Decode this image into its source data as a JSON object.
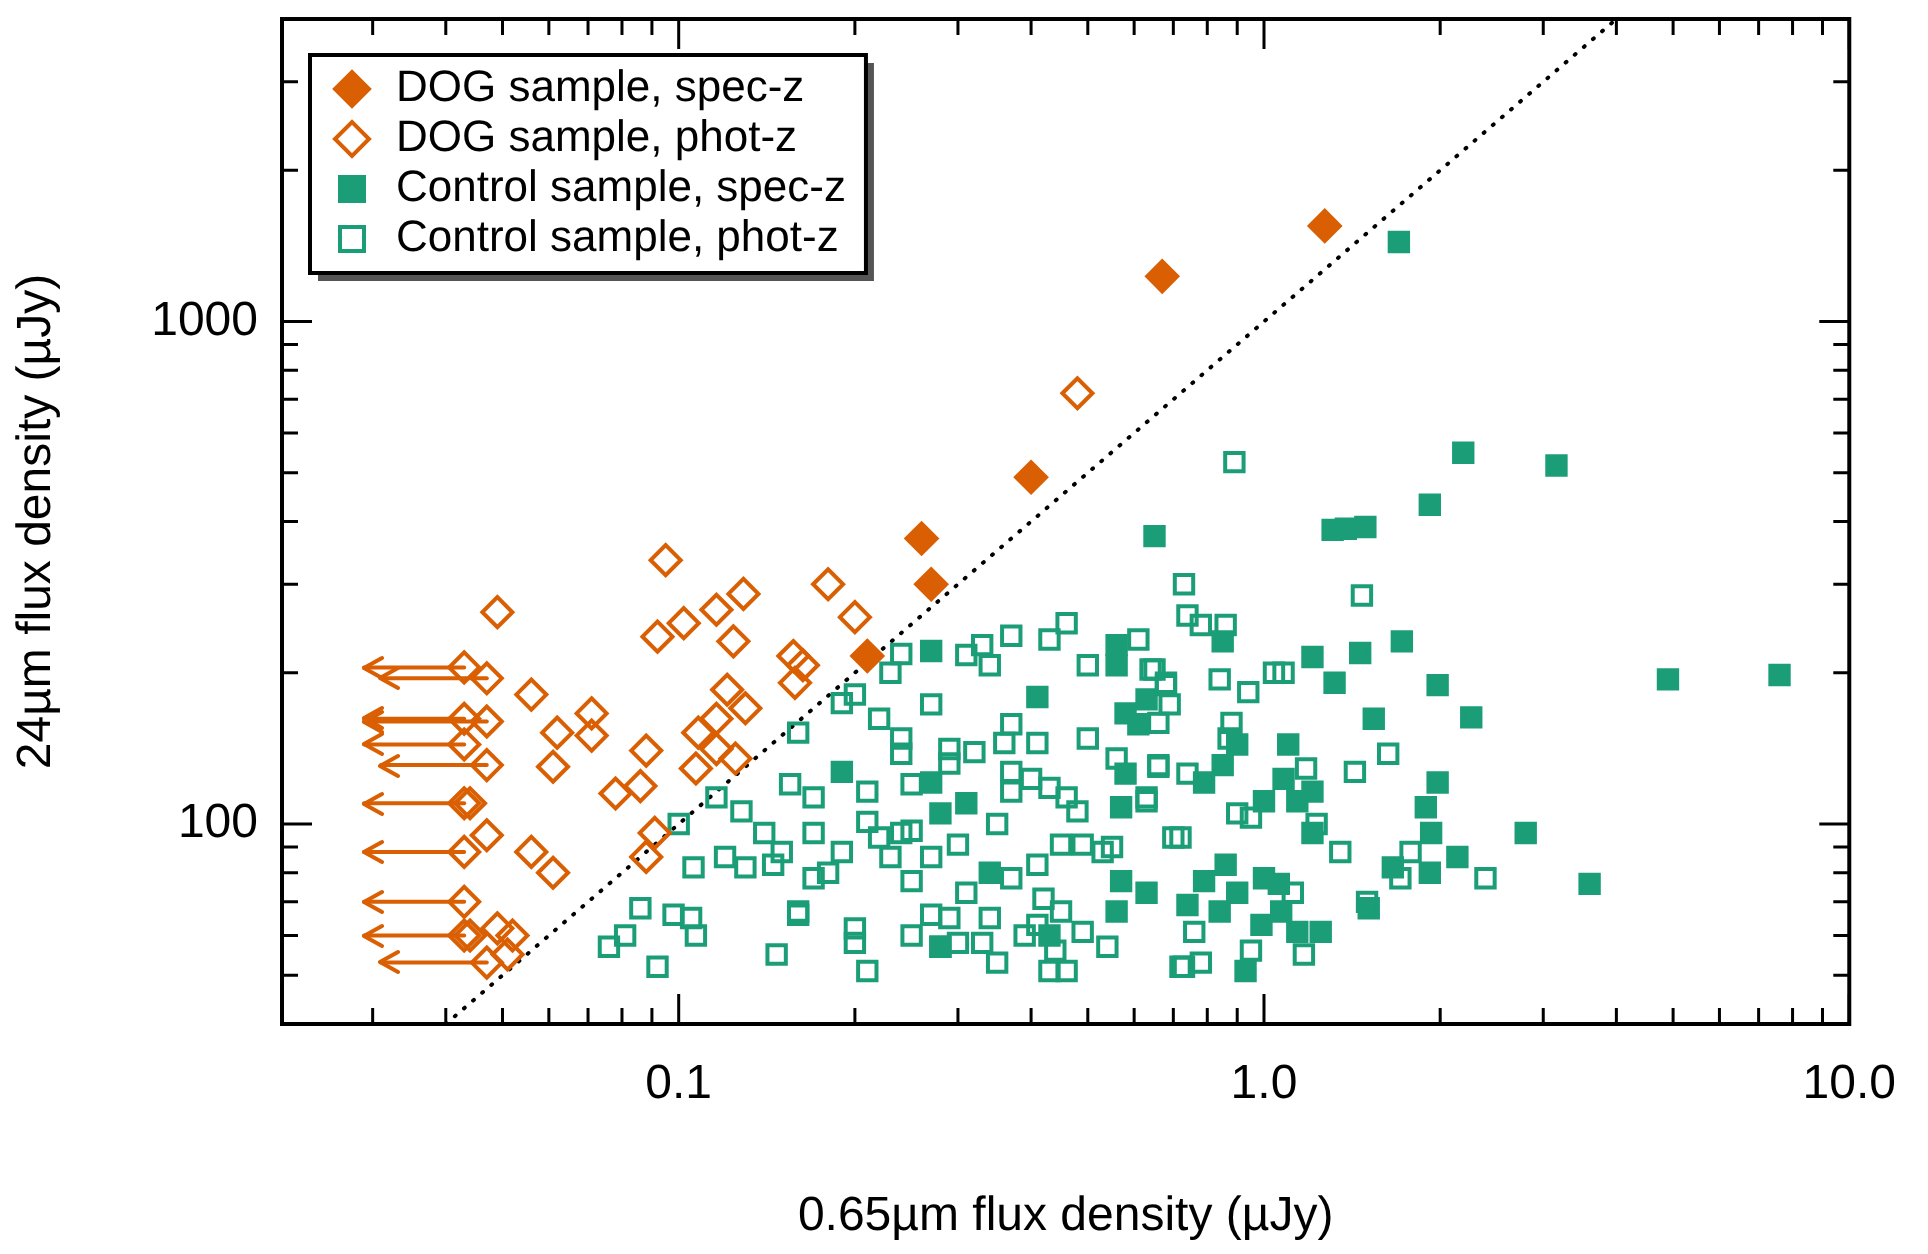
{
  "chart_data": {
    "type": "scatter",
    "xlabel": "0.65µm flux density (µJy)",
    "ylabel": "24µm flux density (µJy)",
    "log": "xy",
    "grid": false,
    "legend": "top left",
    "xlim": [
      0.021,
      10
    ],
    "ylim": [
      40,
      4000
    ],
    "xticks": [
      {
        "value": 0.03,
        "label": null
      },
      {
        "value": 0.04,
        "label": null
      },
      {
        "value": 0.05,
        "label": null
      },
      {
        "value": 0.06,
        "label": null
      },
      {
        "value": 0.07,
        "label": null
      },
      {
        "value": 0.08,
        "label": null
      },
      {
        "value": 0.09,
        "label": null
      },
      0.1,
      {
        "value": 0.2,
        "label": null
      },
      {
        "value": 0.3,
        "label": null
      },
      {
        "value": 0.4,
        "label": null
      },
      {
        "value": 0.5,
        "label": null
      },
      {
        "value": 0.6,
        "label": null
      },
      {
        "value": 0.7,
        "label": null
      },
      {
        "value": 0.8,
        "label": null
      },
      {
        "value": 0.9,
        "label": null
      },
      {
        "value": 1,
        "label": "1.0"
      },
      {
        "value": 2,
        "label": null
      },
      {
        "value": 3,
        "label": null
      },
      {
        "value": 4,
        "label": null
      },
      {
        "value": 5,
        "label": null
      },
      {
        "value": 6,
        "label": null
      },
      {
        "value": 7,
        "label": null
      },
      {
        "value": 8,
        "label": null
      },
      {
        "value": 9,
        "label": null
      },
      {
        "value": 10,
        "label": "10.0"
      }
    ],
    "yticks": [
      {
        "value": 50,
        "label": null
      },
      {
        "value": 60,
        "label": null
      },
      {
        "value": 70,
        "label": null
      },
      {
        "value": 80,
        "label": null
      },
      {
        "value": 90,
        "label": null
      },
      100,
      {
        "value": 200,
        "label": null
      },
      {
        "value": 300,
        "label": null
      },
      {
        "value": 400,
        "label": null
      },
      {
        "value": 500,
        "label": null
      },
      {
        "value": 600,
        "label": null
      },
      {
        "value": 700,
        "label": null
      },
      {
        "value": 800,
        "label": null
      },
      {
        "value": 900,
        "label": null
      },
      1000,
      {
        "value": 2000,
        "label": null
      },
      {
        "value": 3000,
        "label": null
      }
    ],
    "series": [
      {
        "name": "DOG sample, spec-z",
        "marker": "diamond",
        "color": "#d95f02",
        "x": [
          1.27,
          0.67,
          0.4,
          0.26,
          0.27,
          0.21
        ],
        "values": [
          1550,
          1230,
          490,
          370,
          300,
          216
        ]
      },
      {
        "name": "DOG sample, phot-z",
        "marker": "diamond",
        "color": "#d95f02",
        "x": [
          0.48,
          0.095,
          0.18,
          0.2,
          0.049,
          0.092,
          0.102,
          0.116,
          0.129,
          0.124,
          0.157,
          0.163,
          0.158,
          0.121,
          0.13,
          0.116,
          0.108,
          0.116,
          0.125,
          0.107,
          0.088,
          0.086,
          0.078,
          0.091,
          0.088,
          0.056,
          0.071,
          0.062,
          0.071,
          0.061,
          0.056,
          0.061,
          0.049,
          0.052,
          0.051,
          0.047,
          0.043,
          0.047,
          0.043,
          0.047,
          0.043,
          0.047,
          0.043,
          0.044,
          0.043,
          0.043,
          0.043,
          0.044,
          0.047
        ],
        "values": [
          720,
          335,
          300,
          258,
          264,
          236,
          251,
          267,
          287,
          231,
          216,
          207,
          191,
          185,
          170,
          162,
          152,
          141,
          135,
          129,
          140,
          119,
          115,
          96,
          86,
          181,
          166,
          152,
          150,
          130,
          88,
          80,
          62,
          60,
          55,
          95,
          205,
          195,
          162,
          160,
          144,
          131,
          110,
          110,
          88,
          70,
          60,
          60,
          53
        ],
        "xerrors": [
          null,
          null,
          null,
          null,
          null,
          null,
          null,
          null,
          null,
          null,
          null,
          null,
          null,
          null,
          null,
          null,
          null,
          null,
          null,
          null,
          null,
          null,
          null,
          null,
          null,
          null,
          null,
          null,
          null,
          null,
          null,
          null,
          null,
          null,
          null,
          null,
          [
            0.029,
            0.043
          ],
          [
            0.031,
            0.047
          ],
          [
            0.029,
            0.043
          ],
          [
            0.029,
            0.047
          ],
          [
            0.029,
            0.043
          ],
          [
            0.031,
            0.047
          ],
          [
            0.029,
            0.043
          ],
          null,
          [
            0.029,
            0.043
          ],
          [
            0.029,
            0.043
          ],
          [
            0.029,
            0.043
          ],
          null,
          [
            0.031,
            0.047
          ]
        ]
      },
      {
        "name": "Control sample, spec-z",
        "marker": "square",
        "color": "#1b9e77",
        "x": [
          0.85,
          1.21,
          1.46,
          1.72,
          1.32,
          1.98,
          2.26,
          1.54,
          1.98,
          1.89,
          1.93,
          2.14,
          1.66,
          1.92,
          1.51,
          2.8,
          1.1,
          0.9,
          0.85,
          0.79,
          1.08,
          1.0,
          1.14,
          1.21,
          1.21,
          0.86,
          0.79,
          1.0,
          0.9,
          1.06,
          0.74,
          0.84,
          1.07,
          0.99,
          1.14,
          1.25,
          0.93,
          0.63,
          0.27,
          0.41,
          0.56,
          0.56,
          0.58,
          0.61,
          0.63,
          0.58,
          0.57,
          0.19,
          0.27,
          0.28,
          0.31,
          0.34,
          0.57,
          0.56,
          0.28,
          0.43,
          3.16,
          4.9,
          7.6,
          3.6,
          2.19,
          1.92,
          1.7,
          0.65,
          1.31,
          1.38,
          1.49
        ],
        "values": [
          231,
          215,
          219,
          231,
          191,
          189,
          163,
          162,
          121,
          108,
          96,
          86,
          82,
          80,
          68,
          96,
          144,
          144,
          131,
          121,
          123,
          111,
          111,
          116,
          96,
          83,
          77,
          78,
          73,
          76,
          69,
          67,
          67,
          63,
          61,
          61,
          51,
          73,
          221,
          179,
          227,
          207,
          166,
          158,
          177,
          126,
          108,
          127,
          121,
          105,
          110,
          80,
          77,
          67,
          57,
          60,
          517,
          194,
          198,
          76,
          548,
          432,
          1440,
          374,
          385,
          387,
          390
        ]
      },
      {
        "name": "Control sample, phot-z",
        "marker": "square",
        "color": "#1b9e77",
        "x": [
          0.24,
          0.23,
          0.31,
          0.34,
          0.33,
          0.37,
          0.43,
          0.46,
          0.5,
          0.61,
          0.65,
          0.68,
          0.27,
          0.19,
          0.2,
          0.22,
          0.16,
          0.24,
          0.24,
          0.29,
          0.32,
          0.37,
          0.41,
          0.36,
          0.5,
          0.66,
          0.56,
          0.17,
          0.155,
          0.21,
          0.25,
          0.29,
          0.37,
          0.37,
          0.4,
          0.43,
          0.46,
          0.48,
          0.63,
          0.53,
          0.55,
          0.7,
          0.17,
          0.19,
          0.17,
          0.18,
          0.21,
          0.22,
          0.24,
          0.25,
          0.23,
          0.25,
          0.27,
          0.3,
          0.31,
          0.35,
          0.37,
          0.41,
          0.45,
          0.42,
          0.49,
          0.16,
          0.2,
          0.2,
          0.21,
          0.25,
          0.27,
          0.29,
          0.28,
          0.3,
          0.33,
          0.34,
          0.35,
          0.39,
          0.41,
          0.43,
          0.45,
          0.46,
          0.49,
          0.54,
          0.72,
          0.44,
          1.47,
          0.73,
          0.74,
          0.78,
          0.86,
          0.64,
          0.84,
          0.94,
          1.04,
          1.08,
          0.68,
          0.69,
          0.66,
          0.88,
          0.87,
          0.74,
          0.66,
          1.18,
          1.43,
          1.63,
          0.63,
          0.9,
          0.95,
          1.23,
          1.35,
          0.72,
          1.71,
          2.39,
          1.12,
          1.5,
          0.76,
          0.95,
          0.78,
          0.73,
          1.17,
          1.78,
          0.89,
          0.116,
          0.128,
          0.14,
          0.15,
          0.1,
          0.12,
          0.13,
          0.145,
          0.106,
          0.086,
          0.081,
          0.076,
          0.098,
          0.105,
          0.107,
          0.092,
          0.147,
          0.16
        ],
        "values": [
          218,
          200,
          217,
          207,
          227,
          237,
          233,
          251,
          207,
          233,
          203,
          191,
          173,
          174,
          181,
          162,
          152,
          148,
          138,
          141,
          139,
          158,
          145,
          145,
          148,
          131,
          135,
          113,
          120,
          116,
          120,
          132,
          116,
          127,
          123,
          118,
          113,
          106,
          113,
          88,
          90,
          94,
          96,
          88,
          78,
          80,
          101,
          94,
          96,
          97,
          86,
          77,
          86,
          91,
          73,
          100,
          78,
          83,
          91,
          71,
          91,
          67,
          62,
          58,
          51,
          60,
          66,
          65,
          57,
          58,
          58,
          65,
          53,
          60,
          63,
          51,
          67,
          51,
          61,
          57,
          52,
          56,
          285,
          300,
          260,
          249,
          249,
          203,
          194,
          183,
          200,
          200,
          189,
          173,
          159,
          159,
          148,
          126,
          130,
          129,
          127,
          138,
          111,
          105,
          103,
          100,
          88,
          94,
          78,
          78,
          73,
          70,
          61,
          56,
          53,
          52,
          55,
          88,
          525,
          113,
          106,
          96,
          88,
          100,
          86,
          82,
          83,
          82,
          68,
          60,
          57,
          66,
          65,
          60,
          52,
          55,
          66
        ]
      },
      {
        "type": "line",
        "color": "#000000",
        "line_style": "dotted",
        "marker": "none",
        "x": [
          0.04,
          4
        ],
        "values": [
          40,
          4000
        ]
      }
    ]
  }
}
